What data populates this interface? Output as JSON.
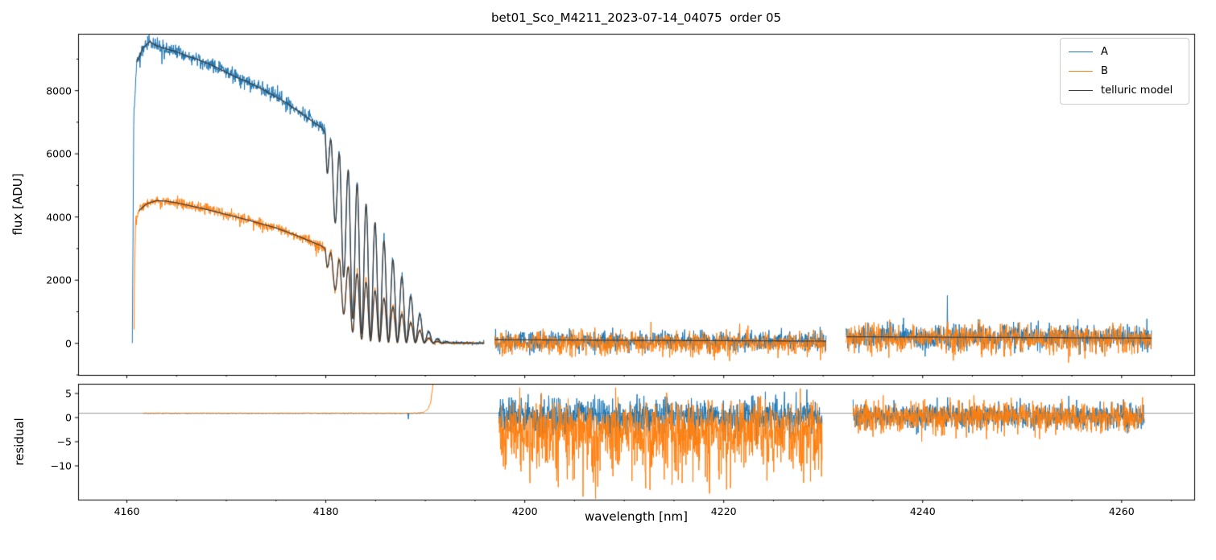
{
  "chart_data": {
    "type": "line",
    "title": "bet01_Sco_M4211_2023-07-14_04075  order 05",
    "xlabel": "wavelength [nm]",
    "xlim": [
      4155.1,
      4267.3
    ],
    "xticks": [
      4160,
      4180,
      4200,
      4220,
      4240,
      4260
    ],
    "xtick_labels": [
      "4160",
      "4180",
      "4200",
      "4220",
      "4240",
      "4260"
    ],
    "legend": [
      "A",
      "B",
      "telluric model"
    ],
    "legend_location": "upper right",
    "colors": {
      "A": "#1f77b4",
      "B": "#ff7f0e",
      "model": "#404040",
      "reference": "#999999"
    },
    "panels": [
      {
        "ylabel": "flux [ADU]",
        "ylim": [
          -1000,
          9800
        ],
        "yticks": [
          0,
          2000,
          4000,
          6000,
          8000
        ],
        "ytick_labels": [
          "0",
          "2000",
          "4000",
          "6000",
          "8000"
        ]
      },
      {
        "ylabel": "residual",
        "ylim": [
          -17,
          7
        ],
        "yticks": [
          5,
          0,
          -5,
          -10
        ],
        "ytick_labels": [
          "5",
          "0",
          "−5",
          "−10"
        ]
      }
    ],
    "flux_segments": [
      {
        "x_range": [
          4160.55,
          4195.9
        ],
        "B_start": 4160.7,
        "noise_sigma_A": 115,
        "noise_sigma_B": 85,
        "A_continuum": [
          [
            4160.55,
            120
          ],
          [
            4160.7,
            7400
          ],
          [
            4161.0,
            8900
          ],
          [
            4161.6,
            9350
          ],
          [
            4162.3,
            9550
          ],
          [
            4163,
            9420
          ],
          [
            4164,
            9320
          ],
          [
            4165,
            9230
          ],
          [
            4166,
            9100
          ],
          [
            4167,
            9000
          ],
          [
            4168,
            8880
          ],
          [
            4169,
            8740
          ],
          [
            4170,
            8580
          ],
          [
            4171,
            8420
          ],
          [
            4172,
            8300
          ],
          [
            4173,
            8140
          ],
          [
            4174,
            7980
          ],
          [
            4175,
            7800
          ],
          [
            4176,
            7620
          ],
          [
            4177,
            7400
          ],
          [
            4178,
            7180
          ],
          [
            4179,
            6950
          ],
          [
            4180,
            6750
          ],
          [
            4181,
            6550
          ],
          [
            4182,
            6300
          ],
          [
            4183,
            6050
          ],
          [
            4184,
            5750
          ],
          [
            4185,
            5450
          ],
          [
            4186,
            5100
          ],
          [
            4187,
            4700
          ],
          [
            4188,
            4250
          ],
          [
            4189,
            3700
          ],
          [
            4190,
            3100
          ],
          [
            4191,
            2500
          ],
          [
            4192,
            1900
          ],
          [
            4193,
            1400
          ],
          [
            4194,
            1150
          ],
          [
            4195.9,
            950
          ]
        ],
        "B_continuum": [
          [
            4160.7,
            110
          ],
          [
            4160.85,
            3750
          ],
          [
            4161.2,
            4200
          ],
          [
            4162,
            4420
          ],
          [
            4163,
            4520
          ],
          [
            4164,
            4500
          ],
          [
            4165,
            4450
          ],
          [
            4166,
            4380
          ],
          [
            4167,
            4310
          ],
          [
            4168,
            4240
          ],
          [
            4169,
            4160
          ],
          [
            4170,
            4080
          ],
          [
            4171,
            4000
          ],
          [
            4172,
            3920
          ],
          [
            4173,
            3830
          ],
          [
            4174,
            3740
          ],
          [
            4175,
            3650
          ],
          [
            4176,
            3540
          ],
          [
            4177,
            3420
          ],
          [
            4178,
            3290
          ],
          [
            4179,
            3160
          ],
          [
            4180,
            3030
          ],
          [
            4181,
            2900
          ],
          [
            4182,
            2780
          ],
          [
            4183,
            2650
          ],
          [
            4184,
            2520
          ],
          [
            4185,
            2380
          ],
          [
            4186,
            2230
          ],
          [
            4187,
            2060
          ],
          [
            4188,
            1870
          ],
          [
            4189,
            1630
          ],
          [
            4190,
            1370
          ],
          [
            4191,
            1100
          ],
          [
            4192,
            840
          ],
          [
            4193,
            620
          ],
          [
            4195.9,
            420
          ]
        ],
        "transmission": [
          [
            4155,
            1.0
          ],
          [
            4179.5,
            1.0
          ],
          [
            4179.9,
            0.99
          ],
          [
            4180.15,
            0.8
          ],
          [
            4180.5,
            0.97
          ],
          [
            4180.95,
            0.58
          ],
          [
            4181.35,
            0.93
          ],
          [
            4181.8,
            0.33
          ],
          [
            4182.25,
            0.88
          ],
          [
            4182.7,
            0.13
          ],
          [
            4183.15,
            0.84
          ],
          [
            4183.6,
            0.05
          ],
          [
            4184.05,
            0.77
          ],
          [
            4184.5,
            0.03
          ],
          [
            4184.95,
            0.7
          ],
          [
            4185.4,
            0.02
          ],
          [
            4185.85,
            0.63
          ],
          [
            4186.3,
            0.015
          ],
          [
            4186.75,
            0.55
          ],
          [
            4187.2,
            0.012
          ],
          [
            4187.65,
            0.48
          ],
          [
            4188.1,
            0.01
          ],
          [
            4188.55,
            0.38
          ],
          [
            4189.0,
            0.01
          ],
          [
            4189.45,
            0.27
          ],
          [
            4189.9,
            0.008
          ],
          [
            4190.35,
            0.13
          ],
          [
            4190.8,
            0.007
          ],
          [
            4191.25,
            0.06
          ],
          [
            4191.7,
            0.006
          ],
          [
            4192.15,
            0.03
          ],
          [
            4192.6,
            0.005
          ],
          [
            4193.1,
            0.015
          ],
          [
            4195.9,
            0.008
          ]
        ]
      },
      {
        "x_range": [
          4197.0,
          4230.3
        ],
        "A": {
          "mean": 70,
          "sigma": 150
        },
        "B": {
          "mean": 10,
          "sigma": 175
        },
        "model": [
          [
            4197.0,
            115
          ],
          [
            4230.3,
            70
          ]
        ]
      },
      {
        "x_range": [
          4232.3,
          4263.0
        ],
        "A": {
          "mean": 190,
          "sigma": 200
        },
        "B": {
          "mean": 150,
          "sigma": 230
        },
        "model": [
          [
            4232.3,
            210
          ],
          [
            4263.0,
            165
          ]
        ],
        "spike": {
          "x": 4242.5,
          "y": 1520
        }
      }
    ],
    "residual_reference": 0.9,
    "residual_segments": [
      {
        "x_range": [
          4161.6,
          4190.9
        ],
        "flat": 0.9,
        "noise": 0.035,
        "A_end": 4189.6,
        "A_dip": {
          "x": 4188.3,
          "y": -0.3
        },
        "B_rise": [
          [
            4189.2,
            0.95
          ],
          [
            4189.8,
            1.1
          ],
          [
            4190.2,
            1.6
          ],
          [
            4190.5,
            2.8
          ],
          [
            4190.7,
            5.5
          ],
          [
            4190.9,
            12
          ]
        ]
      },
      {
        "x_range": [
          4197.4,
          4229.9
        ],
        "A": {
          "mean": 0.4,
          "sigma": 1.8,
          "tail_prob": 0.05,
          "tail_mag": 2.5,
          "clip": [
            -5.5,
            5.8
          ]
        },
        "B": {
          "mean": -2.0,
          "sigma": 3.0,
          "tail_prob": 0.3,
          "tail_mag": 9,
          "clip": [
            -16.8,
            6.2
          ]
        }
      },
      {
        "x_range": [
          4233.0,
          4262.3
        ],
        "A": {
          "mean": 0.3,
          "sigma": 1.2,
          "tail_prob": 0.03,
          "tail_mag": 1.5,
          "clip": [
            -4.5,
            4.5
          ]
        },
        "B": {
          "mean": 0.1,
          "sigma": 1.5,
          "tail_prob": 0.05,
          "tail_mag": 2.0,
          "clip": [
            -5.0,
            4.6
          ]
        },
        "spike": {
          "x": 4242.5,
          "y": 4.2
        }
      }
    ]
  }
}
